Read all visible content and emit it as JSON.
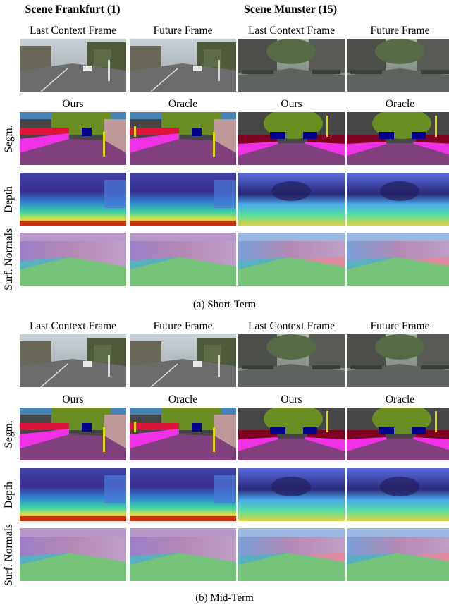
{
  "scene_headers": [
    "Scene Frankfurt (1)",
    "Scene Munster (15)"
  ],
  "frame_labels": [
    "Last Context Frame",
    "Future Frame",
    "Last Context Frame",
    "Future Frame"
  ],
  "method_labels": [
    "Ours",
    "Oracle",
    "Ours",
    "Oracle"
  ],
  "row_labels": {
    "segm": "Segm.",
    "depth": "Depth",
    "normals": "Surf. Normals"
  },
  "sections": [
    {
      "caption": "(a) Short-Term"
    },
    {
      "caption": "(b) Mid-Term"
    }
  ],
  "palette": {
    "road": "#80407e",
    "sidewalk": "#f032e6",
    "vegetation": "#6b8e23",
    "building": "#464646",
    "car": "#00008e",
    "person": "#dc143c",
    "sky": "#4682b4",
    "pole": "#dcdc00",
    "wall": "#be9999",
    "depth_far": "#3a2f8f",
    "depth_near": "#d23a12",
    "normal_road": "#76c47a",
    "normal_wall": "#b48ab4"
  }
}
